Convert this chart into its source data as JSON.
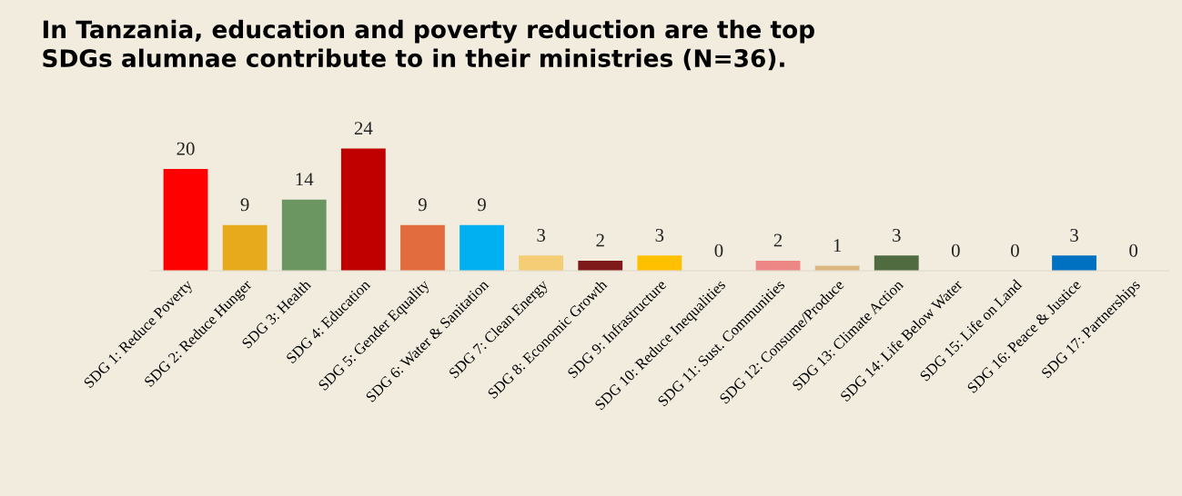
{
  "chart_data": {
    "type": "bar",
    "title": "In Tanzania, education and poverty reduction are the top\nSDGs alumnae contribute to in their ministries (N=36).",
    "categories": [
      "SDG 1: Reduce Poverty",
      "SDG 2: Reduce Hunger",
      "SDG 3: Health",
      "SDG 4: Education",
      "SDG 5: Gender Equality",
      "SDG 6: Water & Sanitation",
      "SDG 7: Clean Energy",
      "SDG 8: Economic Growth",
      "SDG 9: Infrastructure",
      "SDG 10: Reduce Inequalities",
      "SDG 11: Sust. Communities",
      "SDG 12: Consume/Produce",
      "SDG 13: Climate Action",
      "SDG 14: Life Below Water",
      "SDG 15: Life on Land",
      "SDG 16: Peace & Justice",
      "SDG 17: Partnerships"
    ],
    "values": [
      20,
      9,
      14,
      24,
      9,
      9,
      3,
      2,
      3,
      0,
      2,
      1,
      3,
      0,
      0,
      3,
      0
    ],
    "colors": [
      "#ff0000",
      "#e6aa1c",
      "#6b9561",
      "#c00000",
      "#e36c3f",
      "#00b0f0",
      "#f5cd74",
      "#7f1a1a",
      "#ffc000",
      "#e5007f",
      "#ec8786",
      "#dcb880",
      "#4f6b3f",
      "#0a97d9",
      "#56c02b",
      "#0070c0",
      "#1b3668"
    ],
    "data_labels": true
  }
}
